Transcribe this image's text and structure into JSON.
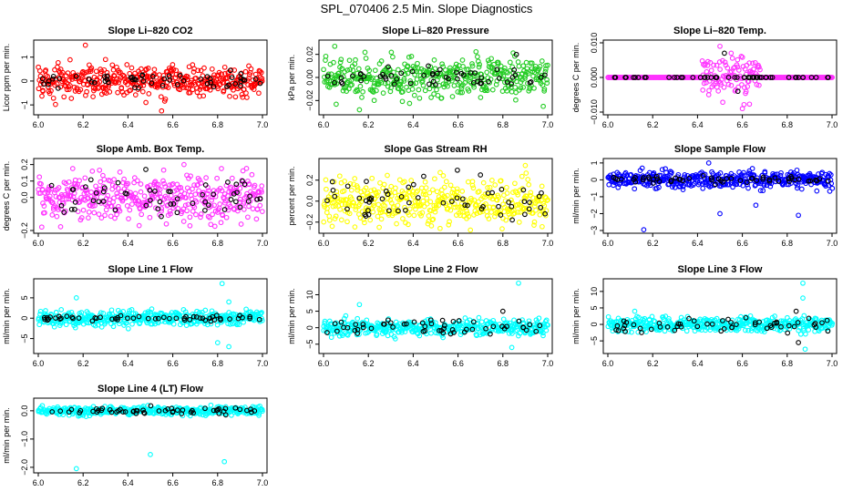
{
  "figure_title": "SPL_070406  2.5 Min. Slope Diagnostics",
  "colors": {
    "co2": "#ff0000",
    "pressure": "#22cc22",
    "temp": "#ff33ff",
    "amb_temp": "#ff33ff",
    "rh": "#ffff00",
    "sample_flow": "#0000ff",
    "line_flow": "#00ffff",
    "secondary": "#000000"
  },
  "chart_data": [
    {
      "id": "co2",
      "type": "scatter",
      "title": "Slope Li–820 CO2",
      "ylabel": "Licor ppm per min.",
      "xlim": [
        6.0,
        7.0
      ],
      "xticks": [
        "6.0",
        "6.2",
        "6.4",
        "6.6",
        "6.8",
        "7.0"
      ],
      "ylim": [
        -1.3,
        1.6
      ],
      "yticks": [
        "−1",
        "0",
        "1"
      ],
      "series": [
        {
          "name": "all",
          "color": "#ff0000",
          "count": 420,
          "spread": 0.32,
          "outliers": [
            [
              6.21,
              1.5
            ],
            [
              6.55,
              -1.25
            ],
            [
              6.48,
              -0.9
            ],
            [
              6.3,
              0.9
            ]
          ]
        },
        {
          "name": "subset",
          "color": "#000000",
          "count": 55,
          "spread": 0.15,
          "outliers": []
        }
      ]
    },
    {
      "id": "pressure",
      "type": "scatter",
      "title": "Slope Li–820 Pressure",
      "ylabel": "kPa per min.",
      "xlim": [
        6.0,
        7.0
      ],
      "xticks": [
        "6.0",
        "6.2",
        "6.4",
        "6.6",
        "6.8",
        "7.0"
      ],
      "ylim": [
        -0.03,
        0.03
      ],
      "yticks": [
        "−0.02",
        "0.00",
        "0.02"
      ],
      "series": [
        {
          "name": "all",
          "color": "#22cc22",
          "count": 420,
          "spread": 0.008,
          "outliers": [
            [
              6.05,
              0.027
            ],
            [
              6.16,
              -0.028
            ],
            [
              6.98,
              -0.025
            ],
            [
              6.62,
              0.015
            ]
          ]
        },
        {
          "name": "subset",
          "color": "#000000",
          "count": 55,
          "spread": 0.004,
          "outliers": [
            [
              6.86,
              0.02
            ]
          ]
        }
      ]
    },
    {
      "id": "temp",
      "type": "scatter",
      "title": "Slope Li–820 Temp.",
      "ylabel": "degrees C per min.",
      "xlim": [
        6.0,
        7.0
      ],
      "xticks": [
        "6.0",
        "6.2",
        "6.4",
        "6.6",
        "6.8",
        "7.0"
      ],
      "ylim": [
        -0.01,
        0.01
      ],
      "yticks": [
        "−0.010",
        "0.000",
        "0.010"
      ],
      "series": [
        {
          "name": "all",
          "color": "#ff33ff",
          "count": 420,
          "spread": 0.0,
          "outliers": [
            [
              6.5,
              0.009
            ],
            [
              6.6,
              -0.009
            ],
            [
              6.45,
              -0.005
            ],
            [
              6.55,
              0.007
            ]
          ]
        },
        {
          "name": "subset",
          "color": "#000000",
          "count": 55,
          "spread": 0.0,
          "outliers": [
            [
              6.52,
              0.007
            ],
            [
              6.58,
              -0.004
            ]
          ]
        }
      ]
    },
    {
      "id": "amb_temp",
      "type": "scatter",
      "title": "Slope Amb. Box Temp.",
      "ylabel": "degrees C per min.",
      "xlim": [
        6.0,
        7.0
      ],
      "xticks": [
        "6.0",
        "6.2",
        "6.4",
        "6.6",
        "6.8",
        "7.0"
      ],
      "ylim": [
        -0.2,
        0.22
      ],
      "yticks": [
        "−0.2",
        "0.0",
        "0.1",
        "0.2"
      ],
      "series": [
        {
          "name": "all",
          "color": "#ff33ff",
          "count": 420,
          "spread": 0.07,
          "outliers": [
            [
              6.65,
              0.2
            ],
            [
              6.45,
              -0.17
            ]
          ]
        },
        {
          "name": "subset",
          "color": "#000000",
          "count": 55,
          "spread": 0.06,
          "outliers": []
        }
      ]
    },
    {
      "id": "rh",
      "type": "scatter",
      "title": "Slope Gas Stream RH",
      "ylabel": "percent per min.",
      "xlim": [
        6.0,
        7.0
      ],
      "xticks": [
        "6.0",
        "6.2",
        "6.4",
        "6.6",
        "6.8",
        "7.0"
      ],
      "ylim": [
        -0.28,
        0.38
      ],
      "yticks": [
        "−0.2",
        "0.0",
        "0.2"
      ],
      "series": [
        {
          "name": "all",
          "color": "#ffff00",
          "count": 420,
          "spread": 0.1,
          "outliers": [
            [
              6.9,
              0.34
            ],
            [
              6.52,
              -0.26
            ]
          ]
        },
        {
          "name": "subset",
          "color": "#000000",
          "count": 55,
          "spread": 0.1,
          "outliers": [
            [
              6.7,
              0.25
            ]
          ]
        }
      ]
    },
    {
      "id": "sample_flow",
      "type": "scatter",
      "title": "Slope Sample Flow",
      "ylabel": "ml/min per min.",
      "xlim": [
        6.0,
        7.0
      ],
      "xticks": [
        "6.0",
        "6.2",
        "6.4",
        "6.6",
        "6.8",
        "7.0"
      ],
      "ylim": [
        -3.0,
        1.1
      ],
      "yticks": [
        "−3",
        "−2",
        "−1",
        "0",
        "1"
      ],
      "series": [
        {
          "name": "all",
          "color": "#0000ff",
          "count": 420,
          "spread": 0.25,
          "outliers": [
            [
              6.45,
              1.0
            ],
            [
              6.5,
              -2.0
            ],
            [
              6.16,
              -2.95
            ],
            [
              6.85,
              -2.1
            ],
            [
              6.66,
              -1.5
            ]
          ]
        },
        {
          "name": "subset",
          "color": "#000000",
          "count": 55,
          "spread": 0.1,
          "outliers": []
        }
      ]
    },
    {
      "id": "line1",
      "type": "scatter",
      "title": "Slope Line 1 Flow",
      "ylabel": "ml/min per min.",
      "xlim": [
        6.0,
        7.0
      ],
      "xticks": [
        "6.0",
        "6.2",
        "6.4",
        "6.6",
        "6.8",
        "7.0"
      ],
      "ylim": [
        -8,
        9
      ],
      "yticks": [
        "−5",
        "0",
        "5"
      ],
      "series": [
        {
          "name": "all",
          "color": "#00ffff",
          "count": 420,
          "spread": 0.9,
          "outliers": [
            [
              6.82,
              8.5
            ],
            [
              6.8,
              -6.0
            ],
            [
              6.85,
              -7.0
            ],
            [
              6.17,
              5.0
            ],
            [
              6.85,
              4.0
            ]
          ]
        },
        {
          "name": "subset",
          "color": "#000000",
          "count": 55,
          "spread": 0.3,
          "outliers": []
        }
      ]
    },
    {
      "id": "line2",
      "type": "scatter",
      "title": "Slope Line 2 Flow",
      "ylabel": "ml/min per min.",
      "xlim": [
        6.0,
        7.0
      ],
      "xticks": [
        "6.0",
        "6.2",
        "6.4",
        "6.6",
        "6.8",
        "7.0"
      ],
      "ylim": [
        -7,
        14
      ],
      "yticks": [
        "−5",
        "0",
        "5",
        "10"
      ],
      "series": [
        {
          "name": "all",
          "color": "#00ffff",
          "count": 420,
          "spread": 1.2,
          "outliers": [
            [
              6.87,
              13.5
            ],
            [
              6.16,
              7.0
            ],
            [
              6.84,
              -6.0
            ]
          ]
        },
        {
          "name": "subset",
          "color": "#000000",
          "count": 55,
          "spread": 1.2,
          "outliers": [
            [
              6.8,
              5.0
            ]
          ]
        }
      ]
    },
    {
      "id": "line3",
      "type": "scatter",
      "title": "Slope Line 3 Flow",
      "ylabel": "ml/min per min.",
      "xlim": [
        6.0,
        7.0
      ],
      "xticks": [
        "6.0",
        "6.2",
        "6.4",
        "6.6",
        "6.8",
        "7.0"
      ],
      "ylim": [
        -8,
        13
      ],
      "yticks": [
        "−5",
        "0",
        "5",
        "10"
      ],
      "series": [
        {
          "name": "all",
          "color": "#00ffff",
          "count": 420,
          "spread": 1.1,
          "outliers": [
            [
              6.87,
              12.5
            ],
            [
              6.87,
              8.0
            ],
            [
              6.88,
              -7.5
            ],
            [
              6.12,
              4.0
            ]
          ]
        },
        {
          "name": "subset",
          "color": "#000000",
          "count": 55,
          "spread": 1.0,
          "outliers": [
            [
              6.85,
              -5.5
            ],
            [
              6.84,
              4.0
            ]
          ]
        }
      ]
    },
    {
      "id": "line4",
      "type": "scatter",
      "title": "Slope Line 4 (LT) Flow",
      "ylabel": "ml/min per min.",
      "xlim": [
        6.0,
        7.0
      ],
      "xticks": [
        "6.0",
        "6.2",
        "6.4",
        "6.6",
        "6.8",
        "7.0"
      ],
      "ylim": [
        -2.1,
        0.35
      ],
      "yticks": [
        "−2.0",
        "−1.0",
        "0.0"
      ],
      "series": [
        {
          "name": "all",
          "color": "#00ffff",
          "count": 420,
          "spread": 0.07,
          "outliers": [
            [
              6.5,
              -1.55
            ],
            [
              6.83,
              -1.8
            ],
            [
              6.17,
              -2.05
            ]
          ]
        },
        {
          "name": "subset",
          "color": "#000000",
          "count": 55,
          "spread": 0.06,
          "outliers": []
        }
      ]
    }
  ]
}
